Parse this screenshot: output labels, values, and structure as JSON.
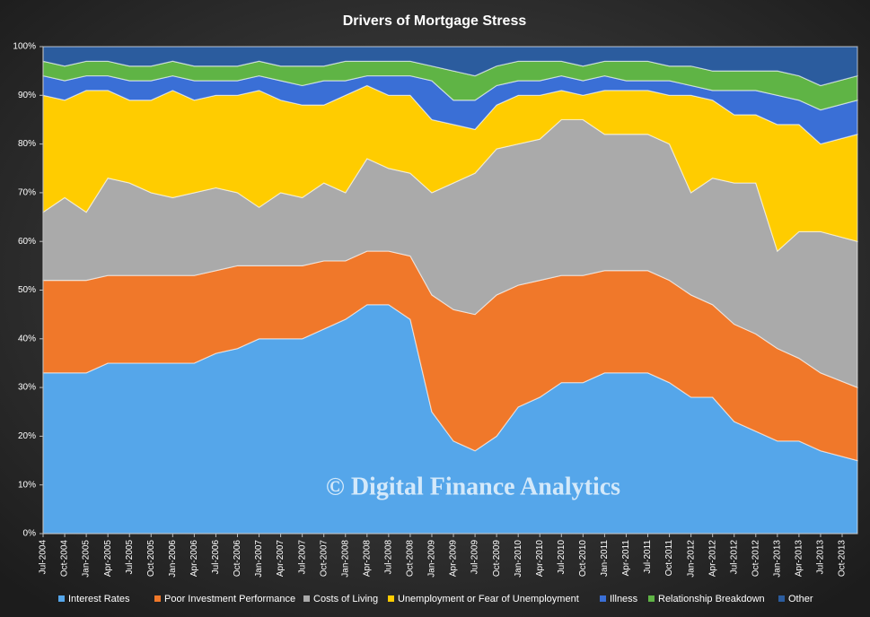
{
  "chart_data": {
    "type": "stacked_area",
    "title": "Drivers  of  Mortgage  Stress",
    "annotation": "© Digital Finance Analytics",
    "categories": [
      "Jul-2004",
      "Oct-2004",
      "Jan-2005",
      "Apr-2005",
      "Jul-2005",
      "Oct-2005",
      "Jan-2006",
      "Apr-2006",
      "Jul-2006",
      "Oct-2006",
      "Jan-2007",
      "Apr-2007",
      "Jul-2007",
      "Oct-2007",
      "Jan-2008",
      "Apr-2008",
      "Jul-2008",
      "Oct-2008",
      "Jan-2009",
      "Apr-2009",
      "Jul-2009",
      "Oct-2009",
      "Jan-2010",
      "Apr-2010",
      "Jul-2010",
      "Oct-2010",
      "Jan-2011",
      "Apr-2011",
      "Jul-2011",
      "Oct-2011",
      "Jan-2012",
      "Apr-2012",
      "Jul-2012",
      "Oct-2012",
      "Jan-2013",
      "Apr-2013",
      "Jul-2013",
      "Oct-2013"
    ],
    "series": [
      {
        "name": "Interest Rates",
        "color": "#55a6ea",
        "values": [
          33,
          33,
          33,
          35,
          35,
          35,
          35,
          35,
          37,
          38,
          40,
          40,
          40,
          42,
          44,
          47,
          47,
          44,
          25,
          19,
          17,
          20,
          26,
          28,
          31,
          31,
          33,
          33,
          33,
          31,
          28,
          28,
          23,
          21,
          19,
          19,
          17,
          15
        ]
      },
      {
        "name": "Poor Investment Performance",
        "color": "#f0782a",
        "values": [
          19,
          19,
          19,
          18,
          18,
          18,
          18,
          18,
          17,
          17,
          15,
          15,
          15,
          14,
          12,
          11,
          11,
          13,
          24,
          27,
          28,
          29,
          25,
          24,
          22,
          22,
          21,
          21,
          21,
          21,
          21,
          19,
          20,
          20,
          19,
          17,
          16,
          15
        ]
      },
      {
        "name": "Costs of Living",
        "color": "#aaaaaa",
        "values": [
          14,
          17,
          14,
          20,
          19,
          17,
          16,
          17,
          17,
          15,
          12,
          15,
          14,
          16,
          14,
          19,
          17,
          17,
          21,
          26,
          29,
          30,
          29,
          29,
          32,
          32,
          28,
          28,
          28,
          28,
          21,
          26,
          29,
          31,
          20,
          26,
          29,
          30
        ]
      },
      {
        "name": "Unemployment or Fear of Unemployment",
        "color": "#ffcc00",
        "values": [
          24,
          20,
          25,
          18,
          17,
          19,
          22,
          19,
          19,
          20,
          24,
          19,
          19,
          16,
          20,
          15,
          15,
          16,
          15,
          12,
          9,
          9,
          10,
          9,
          6,
          5,
          9,
          9,
          9,
          10,
          20,
          16,
          14,
          14,
          26,
          22,
          18,
          22
        ]
      },
      {
        "name": "Illness",
        "color": "#3a6fd6",
        "values": [
          4,
          4,
          3,
          3,
          4,
          4,
          3,
          4,
          3,
          3,
          3,
          4,
          4,
          5,
          3,
          2,
          4,
          4,
          8,
          5,
          6,
          4,
          3,
          3,
          3,
          3,
          3,
          2,
          2,
          3,
          2,
          2,
          5,
          5,
          6,
          5,
          7,
          7
        ]
      },
      {
        "name": "Relationship Breakdown",
        "color": "#5fb445",
        "values": [
          3,
          3,
          3,
          3,
          3,
          3,
          3,
          3,
          3,
          3,
          3,
          3,
          4,
          3,
          4,
          3,
          3,
          3,
          3,
          6,
          5,
          4,
          4,
          4,
          3,
          3,
          3,
          4,
          4,
          3,
          4,
          4,
          4,
          4,
          5,
          5,
          5,
          5
        ]
      },
      {
        "name": "Other",
        "color": "#2b5c9e",
        "values": [
          3,
          4,
          3,
          3,
          4,
          4,
          3,
          4,
          4,
          4,
          3,
          4,
          4,
          4,
          3,
          3,
          3,
          3,
          4,
          5,
          6,
          4,
          3,
          3,
          3,
          4,
          3,
          3,
          3,
          4,
          4,
          5,
          5,
          5,
          5,
          6,
          8,
          6
        ]
      }
    ],
    "ylim": [
      0,
      100
    ],
    "yticks": [
      {
        "value": 0,
        "label": "0%"
      },
      {
        "value": 10,
        "label": "10%"
      },
      {
        "value": 20,
        "label": "20%"
      },
      {
        "value": 30,
        "label": "30%"
      },
      {
        "value": 40,
        "label": "40%"
      },
      {
        "value": 50,
        "label": "50%"
      },
      {
        "value": 60,
        "label": "60%"
      },
      {
        "value": 70,
        "label": "70%"
      },
      {
        "value": 80,
        "label": "80%"
      },
      {
        "value": 90,
        "label": "90%"
      },
      {
        "value": 100,
        "label": "100%"
      }
    ],
    "legend": "bottom"
  }
}
